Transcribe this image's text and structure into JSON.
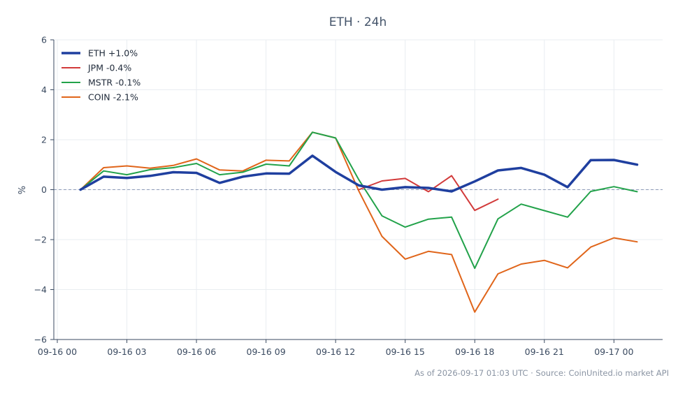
{
  "chart_data": {
    "type": "line",
    "title": "ETH · 24h",
    "ylabel": "%",
    "xlabel": "",
    "ylim": [
      -6,
      6
    ],
    "yticks": [
      -6,
      -4,
      -2,
      0,
      2,
      4,
      6
    ],
    "ytick_labels": [
      "−6",
      "−4",
      "−2",
      "0",
      "2",
      "4",
      "6"
    ],
    "xlim": [
      -0.15,
      26.1
    ],
    "xticks": [
      0,
      3,
      6,
      9,
      12,
      15,
      18,
      21,
      24
    ],
    "xtick_labels": [
      "09-16 00",
      "09-16 03",
      "09-16 06",
      "09-16 09",
      "09-16 12",
      "09-16 15",
      "09-16 18",
      "09-16 21",
      "09-17 00"
    ],
    "grid": true,
    "legend_position": "top-left",
    "baseline": 0,
    "series": [
      {
        "name": "ETH +1.0%",
        "color": "#1f3f9f",
        "width": 3.5,
        "x": [
          1,
          2,
          3,
          4,
          5,
          6,
          7,
          8,
          9,
          10,
          11,
          12,
          13,
          14,
          15,
          16,
          17,
          18,
          19,
          20,
          21,
          22,
          23,
          24,
          25
        ],
        "y": [
          0.0,
          0.52,
          0.47,
          0.55,
          0.7,
          0.67,
          0.27,
          0.52,
          0.65,
          0.64,
          1.36,
          0.71,
          0.17,
          0.0,
          0.1,
          0.07,
          -0.07,
          0.33,
          0.77,
          0.87,
          0.6,
          0.1,
          1.18,
          1.19,
          1.0
        ]
      },
      {
        "name": "JPM -0.4%",
        "color": "#d23a3a",
        "width": 2,
        "x": [
          13,
          14,
          15,
          16,
          17,
          18,
          19
        ],
        "y": [
          0.0,
          0.35,
          0.45,
          -0.08,
          0.56,
          -0.83,
          -0.38
        ]
      },
      {
        "name": "MSTR -0.1%",
        "color": "#22a24a",
        "width": 2,
        "x": [
          1,
          2,
          3,
          4,
          5,
          6,
          7,
          8,
          9,
          10,
          11,
          12,
          13,
          14,
          15,
          16,
          17,
          18,
          19,
          20,
          21,
          22,
          23,
          24,
          25
        ],
        "y": [
          0.0,
          0.75,
          0.6,
          0.8,
          0.88,
          1.05,
          0.6,
          0.7,
          1.02,
          0.95,
          2.3,
          2.07,
          0.4,
          -1.05,
          -1.5,
          -1.18,
          -1.1,
          -3.15,
          -1.17,
          -0.58,
          -0.84,
          -1.1,
          -0.07,
          0.12,
          -0.08
        ]
      },
      {
        "name": "COIN -2.1%",
        "color": "#e0651a",
        "width": 2,
        "x": [
          1,
          2,
          3,
          4,
          5,
          6,
          7,
          8,
          9,
          10,
          11,
          12,
          13,
          14,
          15,
          16,
          17,
          18,
          19,
          20,
          21,
          22,
          23,
          24,
          25
        ],
        "y": [
          0.0,
          0.88,
          0.95,
          0.86,
          0.97,
          1.23,
          0.79,
          0.75,
          1.18,
          1.15,
          2.3,
          2.07,
          -0.05,
          -1.87,
          -2.78,
          -2.47,
          -2.6,
          -4.9,
          -3.37,
          -2.98,
          -2.83,
          -3.13,
          -2.3,
          -1.93,
          -2.09
        ]
      }
    ]
  },
  "footer": {
    "source": "As of 2026-09-17 01:03 UTC · Source: CoinUnited.io market API"
  }
}
